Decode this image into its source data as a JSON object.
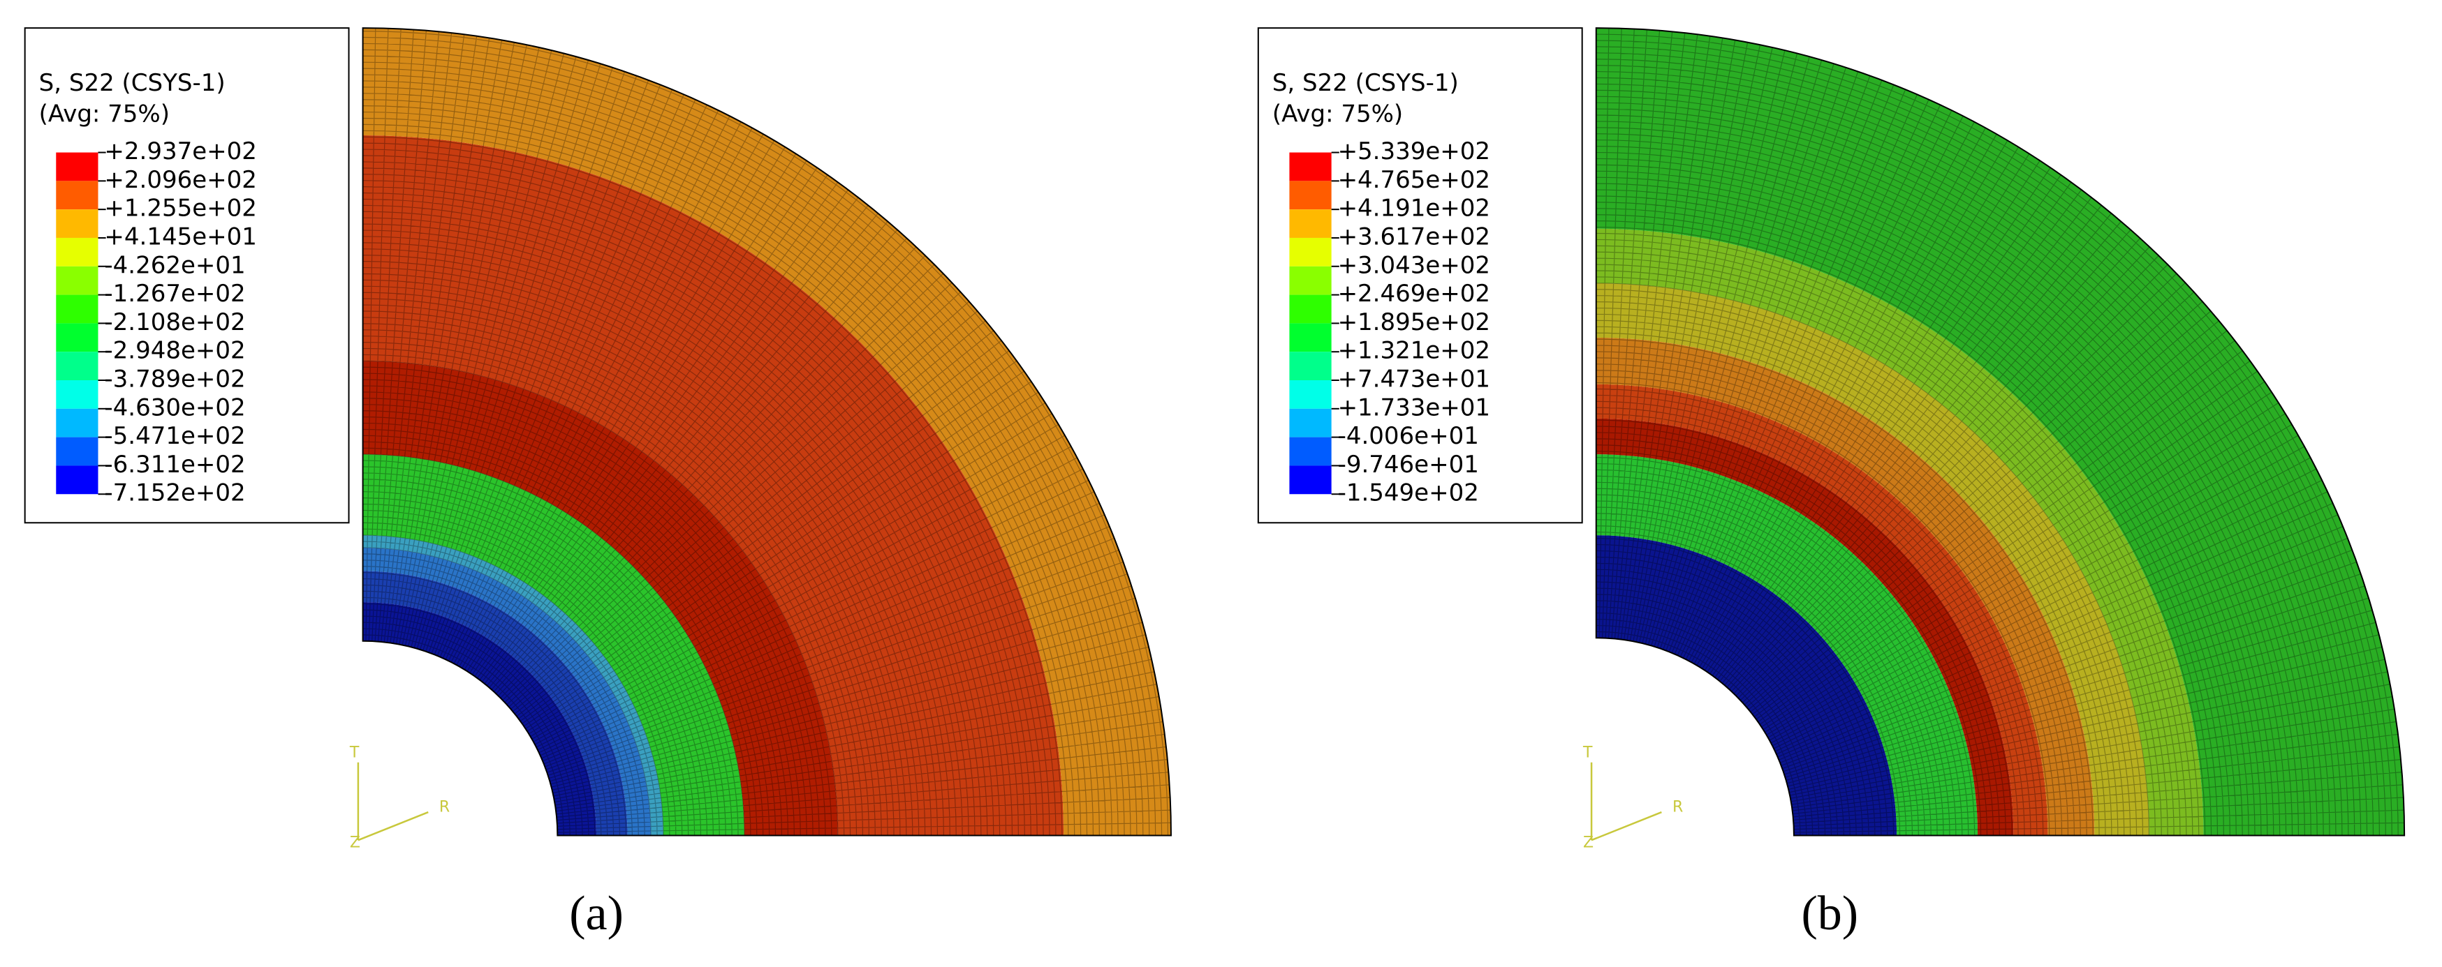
{
  "panels": [
    {
      "caption": "(a)",
      "legend": {
        "title": "S, S22 (CSYS-1)",
        "subtitle": "(Avg: 75%)",
        "labels": [
          "+2.937e+02",
          "+2.096e+02",
          "+1.255e+02",
          "+4.145e+01",
          "-4.262e+01",
          "-1.267e+02",
          "-2.108e+02",
          "-2.948e+02",
          "-3.789e+02",
          "-4.630e+02",
          "-5.471e+02",
          "-6.311e+02",
          "-7.152e+02"
        ]
      },
      "triad": {
        "t": "T",
        "r": "R",
        "z": "Z"
      }
    },
    {
      "caption": "(b)",
      "legend": {
        "title": "S, S22 (CSYS-1)",
        "subtitle": "(Avg: 75%)",
        "labels": [
          "+5.339e+02",
          "+4.765e+02",
          "+4.191e+02",
          "+3.617e+02",
          "+3.043e+02",
          "+2.469e+02",
          "+1.895e+02",
          "+1.321e+02",
          "+7.473e+01",
          "+1.733e+01",
          "-4.006e+01",
          "-9.746e+01",
          "-1.549e+02"
        ]
      },
      "triad": {
        "t": "T",
        "r": "R",
        "z": "Z"
      }
    }
  ]
}
